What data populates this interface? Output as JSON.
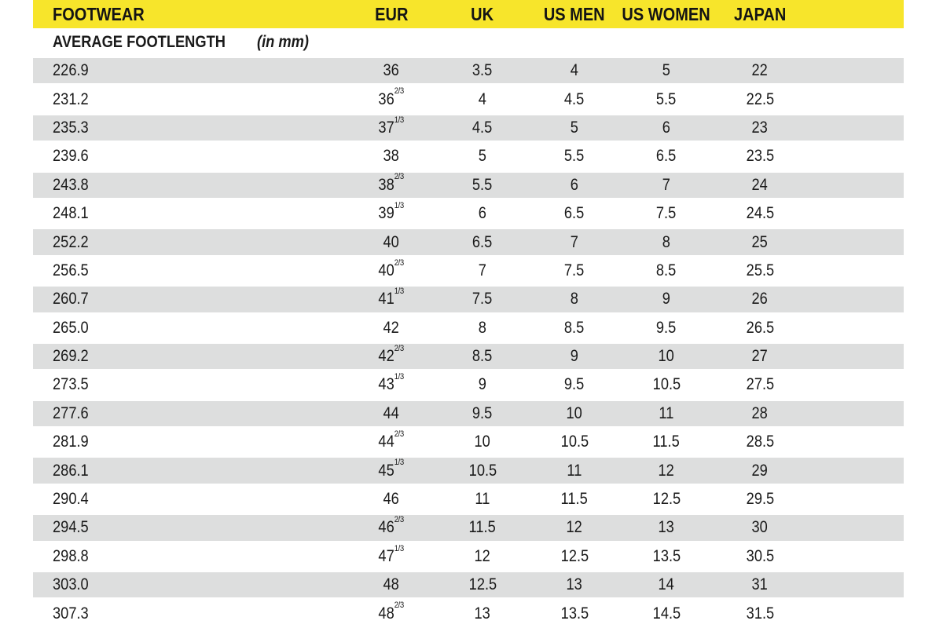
{
  "colors": {
    "header_bg": "#F7E52B",
    "stripe_bg": "#DDDEDE",
    "text": "#1A1A1A",
    "page_bg": "#FFFFFF"
  },
  "table": {
    "header": {
      "footwear": "FOOTWEAR",
      "eur": "EUR",
      "uk": "UK",
      "us_men": "US MEN",
      "us_women": "US WOMEN",
      "japan": "JAPAN"
    },
    "subheader": {
      "label": "AVERAGE FOOTLENGTH",
      "note": "(in mm)"
    },
    "rows": [
      {
        "mm": "226.9",
        "eur": "36",
        "eur_sup": "",
        "uk": "3.5",
        "us_men": "4",
        "us_women": "5",
        "japan": "22"
      },
      {
        "mm": "231.2",
        "eur": "36",
        "eur_sup": "2/3",
        "uk": "4",
        "us_men": "4.5",
        "us_women": "5.5",
        "japan": "22.5"
      },
      {
        "mm": "235.3",
        "eur": "37",
        "eur_sup": "1/3",
        "uk": "4.5",
        "us_men": "5",
        "us_women": "6",
        "japan": "23"
      },
      {
        "mm": "239.6",
        "eur": "38",
        "eur_sup": "",
        "uk": "5",
        "us_men": "5.5",
        "us_women": "6.5",
        "japan": "23.5"
      },
      {
        "mm": "243.8",
        "eur": "38",
        "eur_sup": "2/3",
        "uk": "5.5",
        "us_men": "6",
        "us_women": "7",
        "japan": "24"
      },
      {
        "mm": "248.1",
        "eur": "39",
        "eur_sup": "1/3",
        "uk": "6",
        "us_men": "6.5",
        "us_women": "7.5",
        "japan": "24.5"
      },
      {
        "mm": "252.2",
        "eur": "40",
        "eur_sup": "",
        "uk": "6.5",
        "us_men": "7",
        "us_women": "8",
        "japan": "25"
      },
      {
        "mm": "256.5",
        "eur": "40",
        "eur_sup": "2/3",
        "uk": "7",
        "us_men": "7.5",
        "us_women": "8.5",
        "japan": "25.5"
      },
      {
        "mm": "260.7",
        "eur": "41",
        "eur_sup": "1/3",
        "uk": "7.5",
        "us_men": "8",
        "us_women": "9",
        "japan": "26"
      },
      {
        "mm": "265.0",
        "eur": "42",
        "eur_sup": "",
        "uk": "8",
        "us_men": "8.5",
        "us_women": "9.5",
        "japan": "26.5"
      },
      {
        "mm": "269.2",
        "eur": "42",
        "eur_sup": "2/3",
        "uk": "8.5",
        "us_men": "9",
        "us_women": "10",
        "japan": "27"
      },
      {
        "mm": "273.5",
        "eur": "43",
        "eur_sup": "1/3",
        "uk": "9",
        "us_men": "9.5",
        "us_women": "10.5",
        "japan": "27.5"
      },
      {
        "mm": "277.6",
        "eur": "44",
        "eur_sup": "",
        "uk": "9.5",
        "us_men": "10",
        "us_women": "11",
        "japan": "28"
      },
      {
        "mm": "281.9",
        "eur": "44",
        "eur_sup": "2/3",
        "uk": "10",
        "us_men": "10.5",
        "us_women": "11.5",
        "japan": "28.5"
      },
      {
        "mm": "286.1",
        "eur": "45",
        "eur_sup": "1/3",
        "uk": "10.5",
        "us_men": "11",
        "us_women": "12",
        "japan": "29"
      },
      {
        "mm": "290.4",
        "eur": "46",
        "eur_sup": "",
        "uk": "11",
        "us_men": "11.5",
        "us_women": "12.5",
        "japan": "29.5"
      },
      {
        "mm": "294.5",
        "eur": "46",
        "eur_sup": "2/3",
        "uk": "11.5",
        "us_men": "12",
        "us_women": "13",
        "japan": "30"
      },
      {
        "mm": "298.8",
        "eur": "47",
        "eur_sup": "1/3",
        "uk": "12",
        "us_men": "12.5",
        "us_women": "13.5",
        "japan": "30.5"
      },
      {
        "mm": "303.0",
        "eur": "48",
        "eur_sup": "",
        "uk": "12.5",
        "us_men": "13",
        "us_women": "14",
        "japan": "31"
      },
      {
        "mm": "307.3",
        "eur": "48",
        "eur_sup": "2/3",
        "uk": "13",
        "us_men": "13.5",
        "us_women": "14.5",
        "japan": "31.5"
      }
    ]
  },
  "chart_data": {
    "type": "table",
    "title": "FOOTWEAR size conversion",
    "subtitle": "AVERAGE FOOTLENGTH (in mm)",
    "columns": [
      "FOOTWEAR (avg footlength, mm)",
      "EUR",
      "UK",
      "US MEN",
      "US WOMEN",
      "JAPAN"
    ],
    "rows": [
      [
        226.9,
        "36",
        3.5,
        4,
        5,
        22
      ],
      [
        231.2,
        "36 2/3",
        4,
        4.5,
        5.5,
        22.5
      ],
      [
        235.3,
        "37 1/3",
        4.5,
        5,
        6,
        23
      ],
      [
        239.6,
        "38",
        5,
        5.5,
        6.5,
        23.5
      ],
      [
        243.8,
        "38 2/3",
        5.5,
        6,
        7,
        24
      ],
      [
        248.1,
        "39 1/3",
        6,
        6.5,
        7.5,
        24.5
      ],
      [
        252.2,
        "40",
        6.5,
        7,
        8,
        25
      ],
      [
        256.5,
        "40 2/3",
        7,
        7.5,
        8.5,
        25.5
      ],
      [
        260.7,
        "41 1/3",
        7.5,
        8,
        9,
        26
      ],
      [
        265.0,
        "42",
        8,
        8.5,
        9.5,
        26.5
      ],
      [
        269.2,
        "42 2/3",
        8.5,
        9,
        10,
        27
      ],
      [
        273.5,
        "43 1/3",
        9,
        9.5,
        10.5,
        27.5
      ],
      [
        277.6,
        "44",
        9.5,
        10,
        11,
        28
      ],
      [
        281.9,
        "44 2/3",
        10,
        10.5,
        11.5,
        28.5
      ],
      [
        286.1,
        "45 1/3",
        10.5,
        11,
        12,
        29
      ],
      [
        290.4,
        "46",
        11,
        11.5,
        12.5,
        29.5
      ],
      [
        294.5,
        "46 2/3",
        11.5,
        12,
        13,
        30
      ],
      [
        298.8,
        "47 1/3",
        12,
        12.5,
        13.5,
        30.5
      ],
      [
        303.0,
        "48",
        12.5,
        13,
        14,
        31
      ],
      [
        307.3,
        "48 2/3",
        13,
        13.5,
        14.5,
        31.5
      ]
    ],
    "layout": {
      "striped_rows": true,
      "header_style": "yellow-band",
      "first_column_align": "left",
      "other_columns_align": "center"
    }
  }
}
